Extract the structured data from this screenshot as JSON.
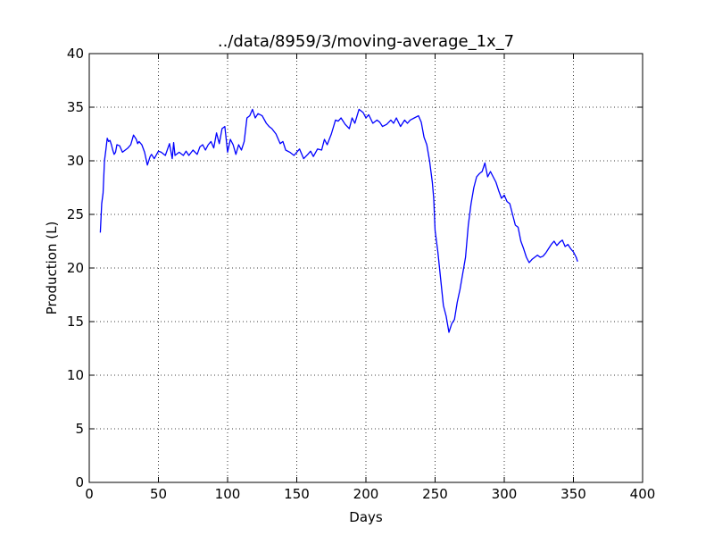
{
  "chart_data": {
    "type": "line",
    "title": "../data/8959/3/moving-average_1x_7",
    "xlabel": "Days",
    "ylabel": "Production (L)",
    "xlim": [
      0,
      400
    ],
    "ylim": [
      0,
      40
    ],
    "xticks": [
      0,
      50,
      100,
      150,
      200,
      250,
      300,
      350,
      400
    ],
    "yticks": [
      0,
      5,
      10,
      15,
      20,
      25,
      30,
      35,
      40
    ],
    "grid": true,
    "line_color": "#0000ff",
    "series": [
      {
        "x": [
          8,
          9,
          10,
          11,
          12,
          13,
          14,
          15,
          16,
          17,
          18,
          19,
          20,
          22,
          24,
          26,
          28,
          30,
          32,
          34,
          35,
          36,
          38,
          40,
          42,
          44,
          45,
          47,
          50,
          52,
          55,
          58,
          60,
          61,
          62,
          65,
          68,
          70,
          72,
          75,
          78,
          80,
          82,
          84,
          86,
          88,
          90,
          92,
          94,
          96,
          98,
          100,
          102,
          104,
          106,
          108,
          110,
          112,
          114,
          116,
          118,
          120,
          122,
          125,
          128,
          130,
          132,
          135,
          138,
          140,
          142,
          145,
          148,
          150,
          152,
          155,
          158,
          160,
          162,
          165,
          168,
          170,
          172,
          175,
          178,
          180,
          182,
          185,
          188,
          190,
          192,
          195,
          198,
          200,
          202,
          205,
          208,
          210,
          212,
          215,
          218,
          220,
          222,
          225,
          228,
          230,
          232,
          235,
          238,
          240,
          242,
          244,
          246,
          248,
          249,
          250,
          252,
          254,
          256,
          258,
          260,
          262,
          264,
          266,
          268,
          270,
          272,
          274,
          276,
          278,
          280,
          282,
          284,
          286,
          288,
          290,
          292,
          294,
          296,
          298,
          300,
          302,
          304,
          306,
          308,
          310,
          312,
          314,
          316,
          318,
          320,
          322,
          324,
          326,
          328,
          330,
          332,
          334,
          336,
          338,
          340,
          342,
          344,
          346,
          348,
          350,
          352,
          353
        ],
        "values": [
          23.3,
          26.0,
          27.0,
          30.0,
          31.0,
          32.1,
          31.8,
          31.9,
          31.5,
          31.0,
          30.6,
          30.8,
          31.5,
          31.4,
          30.8,
          31.0,
          31.2,
          31.5,
          32.4,
          32.0,
          31.6,
          31.8,
          31.5,
          30.8,
          29.6,
          30.4,
          30.6,
          30.2,
          30.9,
          30.8,
          30.5,
          31.6,
          30.2,
          31.7,
          30.5,
          30.8,
          30.5,
          30.9,
          30.5,
          31.0,
          30.6,
          31.3,
          31.5,
          31.0,
          31.5,
          31.8,
          31.2,
          32.6,
          31.6,
          33.0,
          33.2,
          30.8,
          32.0,
          31.5,
          30.6,
          31.5,
          31.0,
          31.8,
          34.0,
          34.2,
          34.8,
          34.0,
          34.4,
          34.2,
          33.5,
          33.2,
          33.0,
          32.5,
          31.6,
          31.8,
          31.0,
          30.8,
          30.5,
          30.8,
          31.1,
          30.2,
          30.6,
          30.9,
          30.4,
          31.1,
          31.0,
          32.0,
          31.5,
          32.5,
          33.8,
          33.7,
          34.0,
          33.4,
          33.0,
          34.0,
          33.5,
          34.8,
          34.5,
          34.0,
          34.3,
          33.5,
          33.8,
          33.6,
          33.2,
          33.4,
          33.8,
          33.5,
          34.0,
          33.2,
          33.8,
          33.5,
          33.8,
          34.0,
          34.2,
          33.6,
          32.2,
          31.5,
          30.0,
          28.0,
          26.5,
          23.5,
          21.5,
          19.0,
          16.5,
          15.5,
          14.0,
          14.8,
          15.2,
          16.8,
          18.0,
          19.5,
          21.0,
          24.0,
          26.0,
          27.5,
          28.5,
          28.8,
          29.0,
          29.8,
          28.5,
          29.0,
          28.5,
          28.0,
          27.2,
          26.5,
          26.8,
          26.2,
          26.0,
          25.0,
          24.0,
          23.8,
          22.5,
          21.8,
          21.0,
          20.5,
          20.8,
          21.0,
          21.2,
          21.0,
          21.1,
          21.4,
          21.8,
          22.2,
          22.5,
          22.1,
          22.4,
          22.6,
          22.0,
          22.2,
          21.8,
          21.5,
          21.0,
          20.6
        ]
      }
    ]
  }
}
